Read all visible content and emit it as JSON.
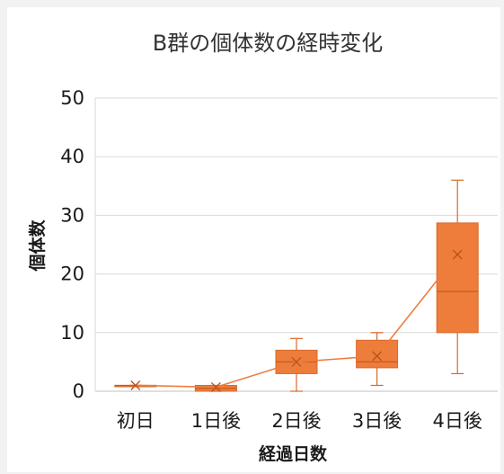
{
  "chart_data": {
    "type": "box",
    "title": "B群の個体数の経時変化",
    "xlabel": "経過日数",
    "ylabel": "個体数",
    "ylim": [
      0,
      50
    ],
    "yticks": [
      0,
      10,
      20,
      30,
      40,
      50
    ],
    "categories": [
      "初日",
      "1日後",
      "2日後",
      "3日後",
      "4日後"
    ],
    "boxes": [
      {
        "min": 1,
        "q1": 1,
        "median": 1,
        "q3": 1,
        "max": 1,
        "mean": 1
      },
      {
        "min": 0,
        "q1": 0,
        "median": 0.5,
        "q3": 1,
        "max": 1,
        "mean": 0.7
      },
      {
        "min": 0,
        "q1": 3,
        "median": 5,
        "q3": 7,
        "max": 9,
        "mean": 5
      },
      {
        "min": 1,
        "q1": 4,
        "median": 5,
        "q3": 8.7,
        "max": 10,
        "mean": 6
      },
      {
        "min": 3,
        "q1": 10,
        "median": 17,
        "q3": 28.7,
        "max": 36,
        "mean": 23.3
      }
    ],
    "mean_line": true,
    "grid": true,
    "colors": {
      "box_fill": "#ee7d3c",
      "box_stroke": "#d8692a",
      "grid": "#d9d9d9",
      "axis": "#bfbfbf"
    }
  }
}
